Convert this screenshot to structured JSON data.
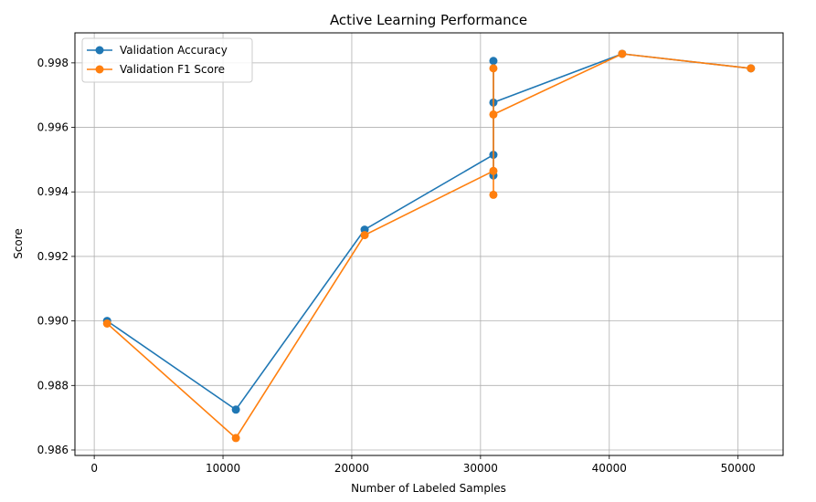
{
  "chart_data": {
    "type": "line",
    "title": "Active Learning Performance",
    "xlabel": "Number of Labeled Samples",
    "ylabel": "Score",
    "xlim": [
      -1500,
      53500
    ],
    "ylim": [
      0.98583,
      0.99893
    ],
    "xticks": [
      0,
      10000,
      20000,
      30000,
      40000,
      50000
    ],
    "xtick_labels": [
      "0",
      "10000",
      "20000",
      "30000",
      "40000",
      "50000"
    ],
    "yticks": [
      0.986,
      0.988,
      0.99,
      0.992,
      0.994,
      0.996,
      0.998
    ],
    "ytick_labels": [
      "0.986",
      "0.988",
      "0.990",
      "0.992",
      "0.994",
      "0.996",
      "0.998"
    ],
    "grid": true,
    "legend_position": "upper left",
    "series": [
      {
        "name": "Validation Accuracy",
        "color": "#1f77b4",
        "x": [
          1000,
          11000,
          21000,
          31000,
          31000,
          31000,
          31000,
          41000,
          51000
        ],
        "y": [
          0.99,
          0.98725,
          0.99283,
          0.99515,
          0.99451,
          0.99806,
          0.99677,
          0.99828,
          0.99783
        ]
      },
      {
        "name": "Validation F1 Score",
        "color": "#ff7f0e",
        "x": [
          1000,
          11000,
          21000,
          31000,
          31000,
          31000,
          31000,
          41000,
          51000
        ],
        "y": [
          0.98992,
          0.98637,
          0.99266,
          0.99465,
          0.99391,
          0.99783,
          0.9964,
          0.99828,
          0.99783
        ]
      }
    ]
  }
}
